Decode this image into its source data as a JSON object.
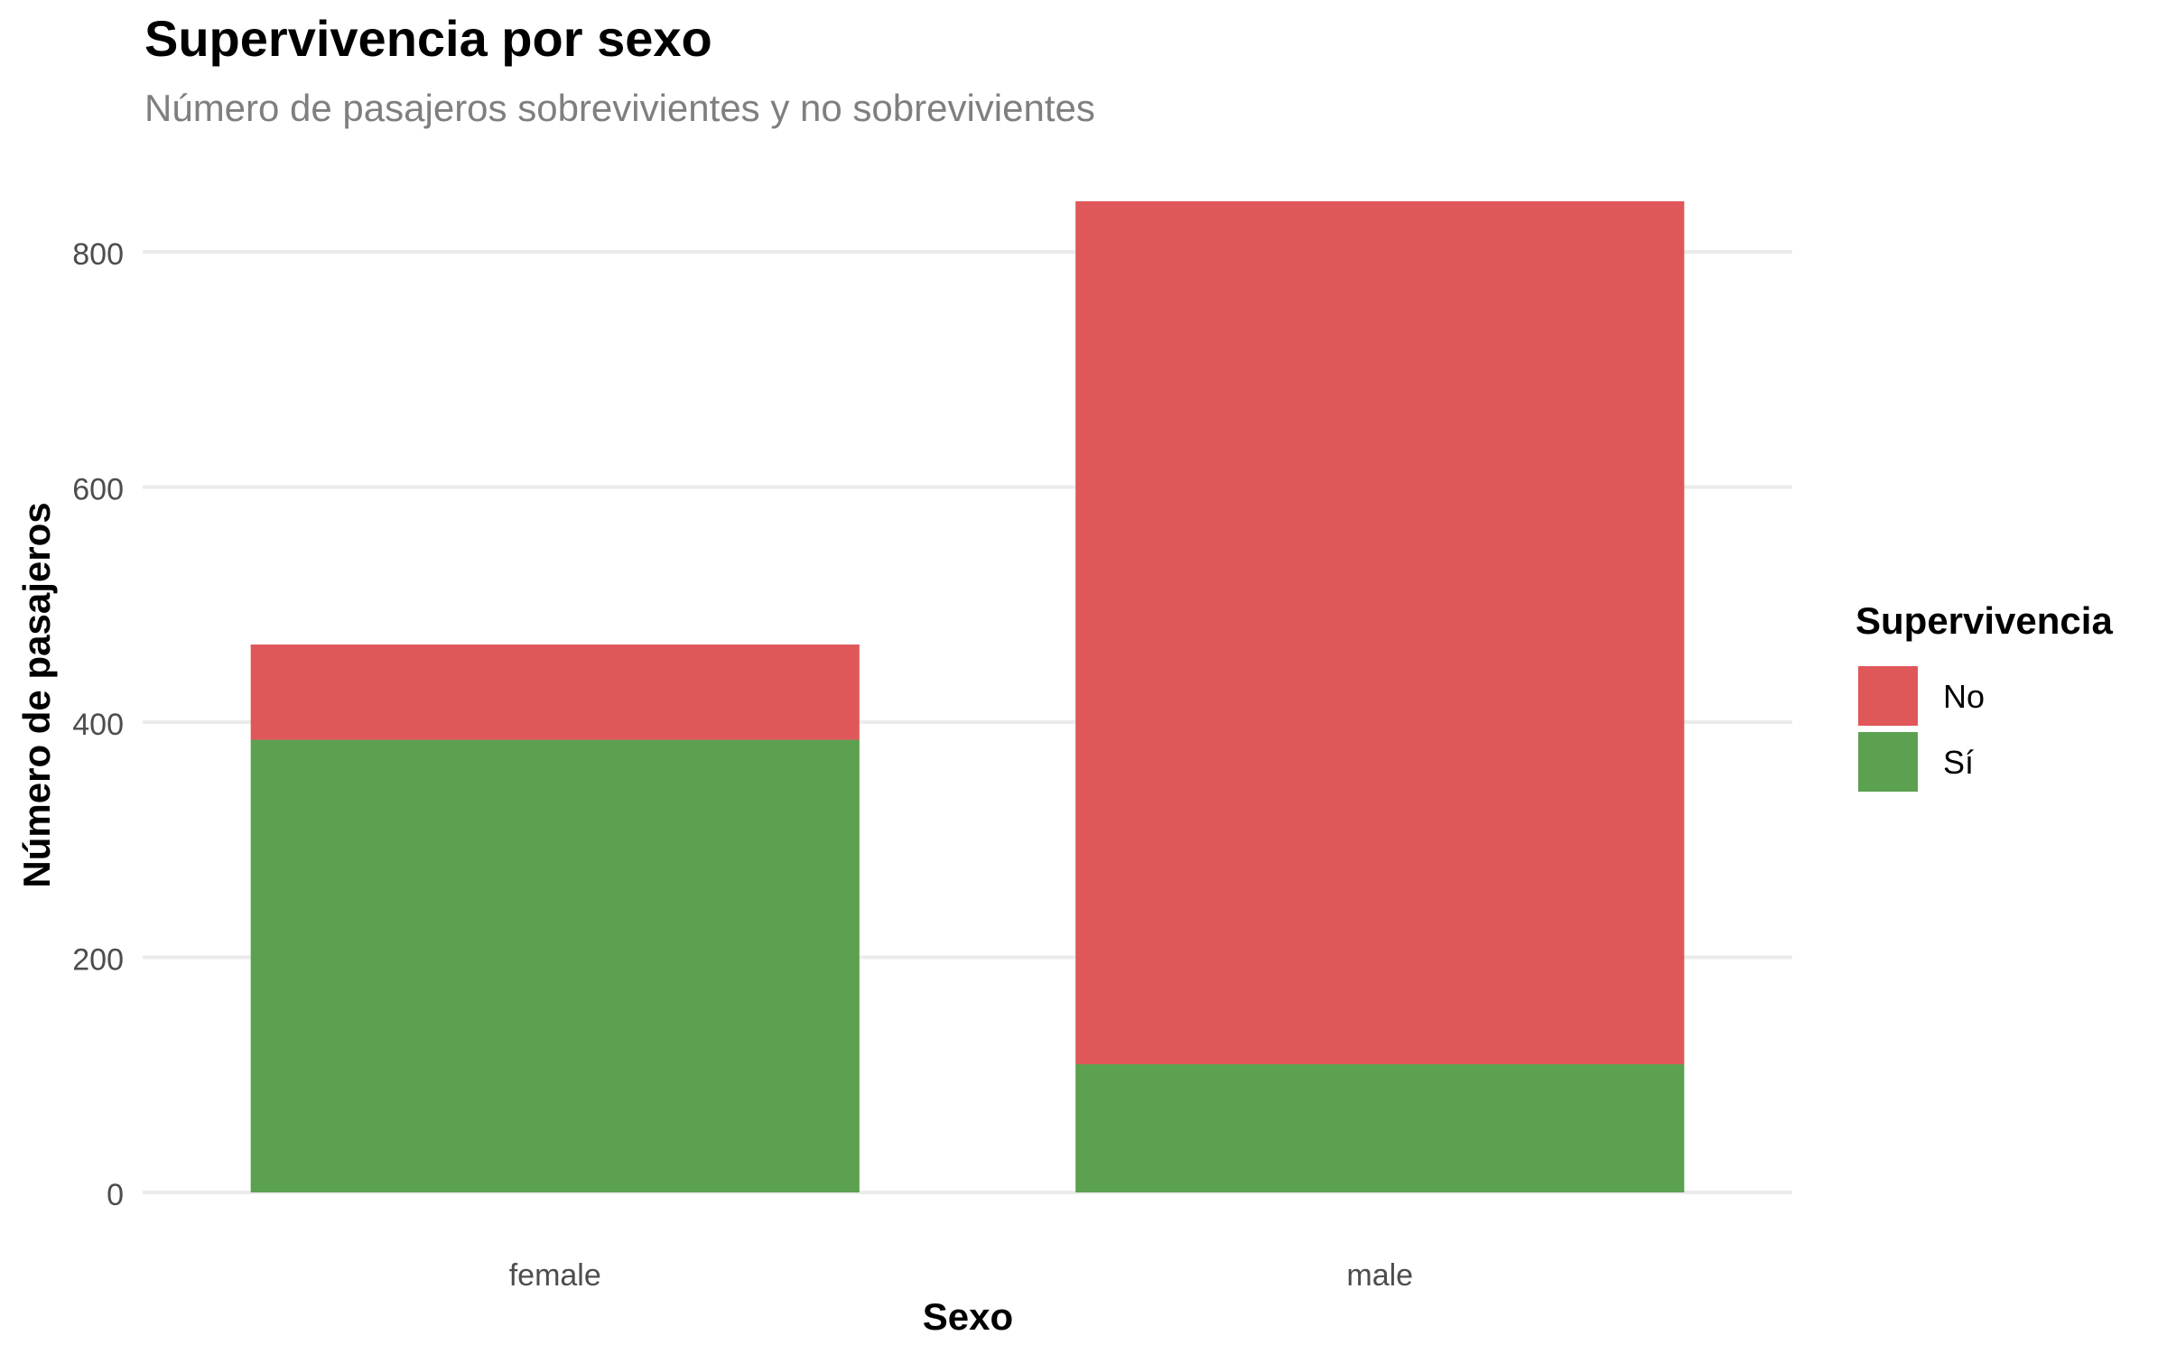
{
  "chart_data": {
    "type": "bar",
    "stacked": true,
    "title": "Supervivencia por sexo",
    "subtitle": "Número de pasajeros sobrevivientes y no sobrevivientes",
    "xlabel": "Sexo",
    "ylabel": "Número de pasajeros",
    "categories": [
      "female",
      "male"
    ],
    "series": [
      {
        "name": "Sí",
        "values": [
          385,
          109
        ],
        "color": "#5BA150"
      },
      {
        "name": "No",
        "values": [
          81,
          734
        ],
        "color": "#E0575A"
      }
    ],
    "ylim": [
      0,
      850
    ],
    "yticks": [
      0,
      200,
      400,
      600,
      800
    ],
    "grid": true,
    "legend": {
      "title": "Supervivencia",
      "placement": "right",
      "entries": [
        {
          "label": "No",
          "color": "#E0575A"
        },
        {
          "label": "Sí",
          "color": "#5BA150"
        }
      ]
    }
  }
}
